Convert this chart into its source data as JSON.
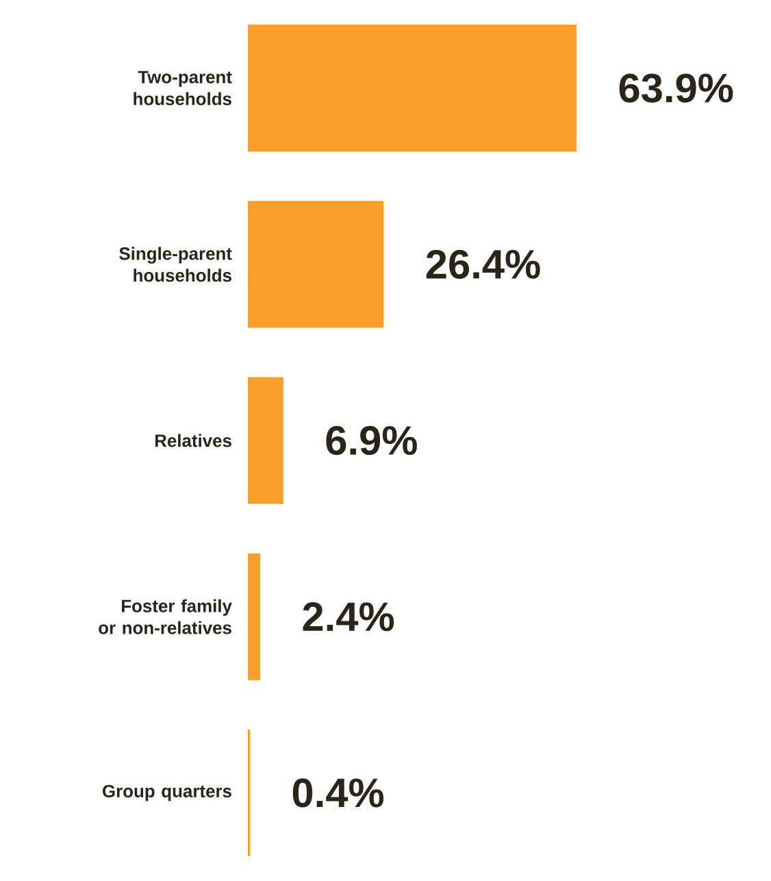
{
  "chart_data": {
    "type": "bar",
    "orientation": "horizontal",
    "categories": [
      "Two-parent households",
      "Single-parent households",
      "Relatives",
      "Foster family or non-relatives",
      "Group quarters"
    ],
    "values": [
      63.9,
      26.4,
      6.9,
      2.4,
      0.4
    ],
    "value_labels": [
      "63.9%",
      "26.4%",
      "6.9%",
      "2.4%",
      "0.4%"
    ],
    "color": "#f89f2b"
  }
}
